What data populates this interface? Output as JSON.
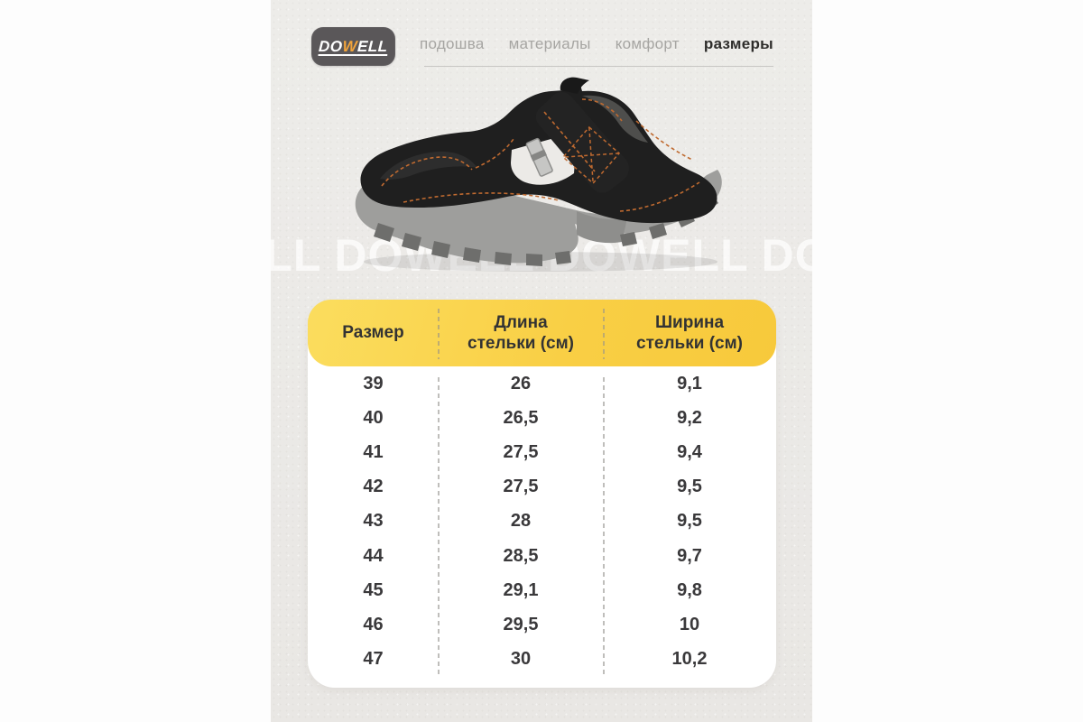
{
  "brand": {
    "name": "DOWELL",
    "logo": {
      "part1": "DO",
      "part2": "W",
      "part3": "ELL"
    },
    "colors": {
      "pill_bg": "#5A5759",
      "accent_orange": "#F2A43B",
      "text": "#FFFFFF"
    }
  },
  "nav": {
    "items": [
      {
        "label": "подошва",
        "active": false
      },
      {
        "label": "материалы",
        "active": false
      },
      {
        "label": "комфорт",
        "active": false
      },
      {
        "label": "размеры",
        "active": true
      }
    ]
  },
  "hero": {
    "watermark_text": "DOWELL DOWELL DOWELL DOWELL",
    "image_subject": "black-leather-safety-sandal-grey-sole"
  },
  "size_table": {
    "columns": [
      "Размер",
      "Длина стельки (см)",
      "Ширина стельки (см)"
    ],
    "rows": [
      [
        "39",
        "26",
        "9,1"
      ],
      [
        "40",
        "26,5",
        "9,2"
      ],
      [
        "41",
        "27,5",
        "9,4"
      ],
      [
        "42",
        "27,5",
        "9,5"
      ],
      [
        "43",
        "28",
        "9,5"
      ],
      [
        "44",
        "28,5",
        "9,7"
      ],
      [
        "45",
        "29,1",
        "9,8"
      ],
      [
        "46",
        "29,5",
        "10"
      ],
      [
        "47",
        "30",
        "10,2"
      ]
    ],
    "header_colors": {
      "from": "#FBDD5E",
      "to": "#F7C93B",
      "text": "#333333"
    },
    "panel_bg": "#ECEAE7"
  }
}
